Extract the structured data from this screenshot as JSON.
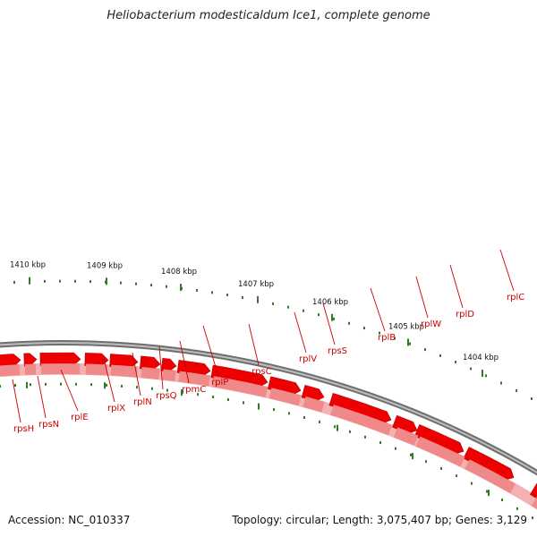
{
  "title": "Heliobacterium modesticaldum Ice1, complete genome",
  "footer": {
    "accession": "Accession: NC_010337",
    "summary": "Topology: circular; Length: 3,075,407 bp; Genes: 3,129"
  },
  "colors": {
    "backbone": "#888888",
    "gene": "#ee0000",
    "gene_track": "#f08a8a",
    "tick": "#2e7d1e",
    "label": "#cc0000"
  },
  "scale_labels": [
    "1404 kbp",
    "1405 kbp",
    "1406 kbp",
    "1407 kbp",
    "1408 kbp",
    "1409 kbp",
    "1410 kbp"
  ],
  "genes": [
    {
      "name": "rplC"
    },
    {
      "name": "rplD"
    },
    {
      "name": "rplW"
    },
    {
      "name": "rplB"
    },
    {
      "name": "rpsS"
    },
    {
      "name": "rplV"
    },
    {
      "name": "rpsC"
    },
    {
      "name": "rplP"
    },
    {
      "name": "rpmC"
    },
    {
      "name": "rpsQ"
    },
    {
      "name": "rplN"
    },
    {
      "name": "rplX"
    },
    {
      "name": "rplE"
    },
    {
      "name": "rpsN"
    },
    {
      "name": "rpsH"
    }
  ]
}
